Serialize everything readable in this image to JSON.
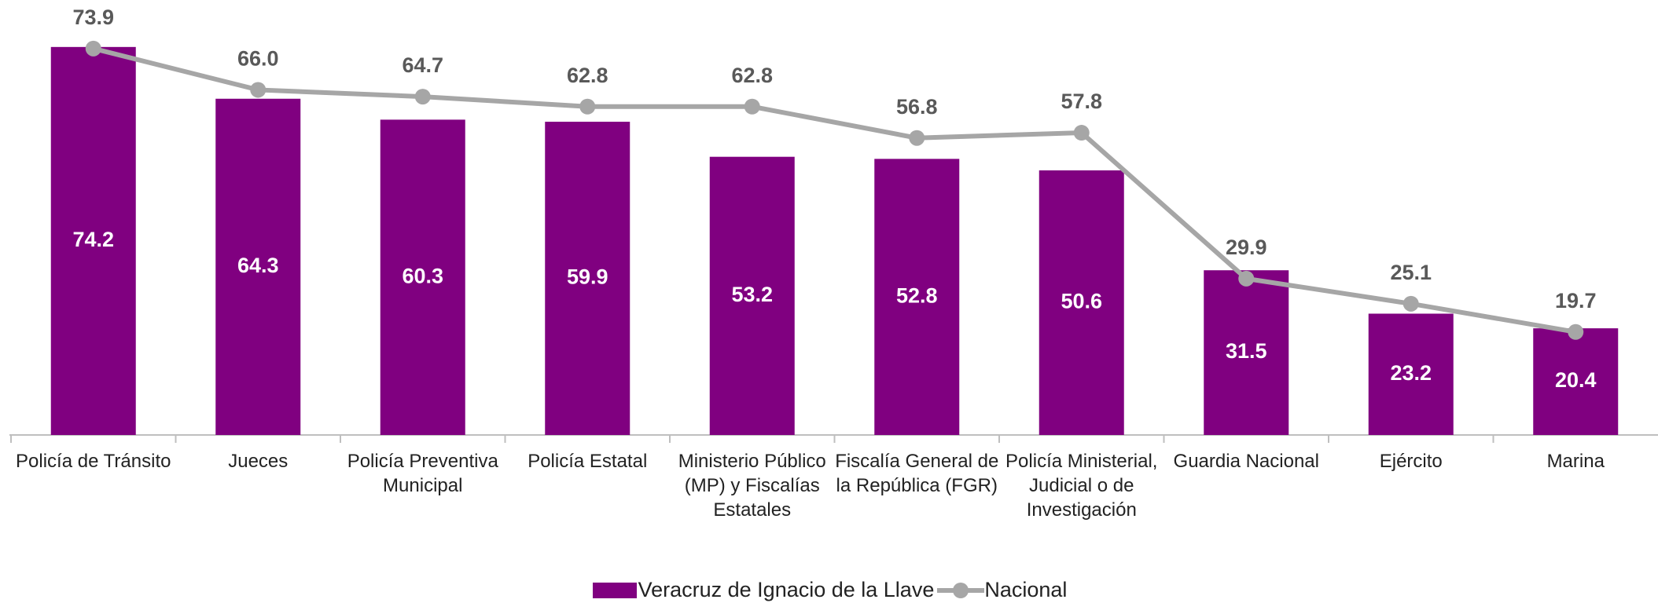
{
  "chart_data": {
    "type": "bar-line",
    "categories": [
      "Policía de Tránsito",
      "Jueces",
      "Policía Preventiva Municipal",
      "Policía Estatal",
      "Ministerio Público (MP) y Fiscalías Estatales",
      "Fiscalía General de la República (FGR)",
      "Policía Ministerial, Judicial o de Investigación",
      "Guardia Nacional",
      "Ejército",
      "Marina"
    ],
    "series": [
      {
        "name": "Veracruz de Ignacio de la Llave",
        "type": "bar",
        "color": "#800080",
        "values": [
          74.2,
          64.3,
          60.3,
          59.9,
          53.2,
          52.8,
          50.6,
          31.5,
          23.2,
          20.4
        ]
      },
      {
        "name": "Nacional",
        "type": "line",
        "color": "#a6a6a6",
        "values": [
          73.9,
          66.0,
          64.7,
          62.8,
          62.8,
          56.8,
          57.8,
          29.9,
          25.1,
          19.7
        ],
        "value_labels": [
          "73.9",
          "66.0",
          "64.7",
          "62.8",
          "62.8",
          "56.8",
          "57.8",
          "29.9",
          "25.1",
          "19.7"
        ]
      }
    ]
  }
}
